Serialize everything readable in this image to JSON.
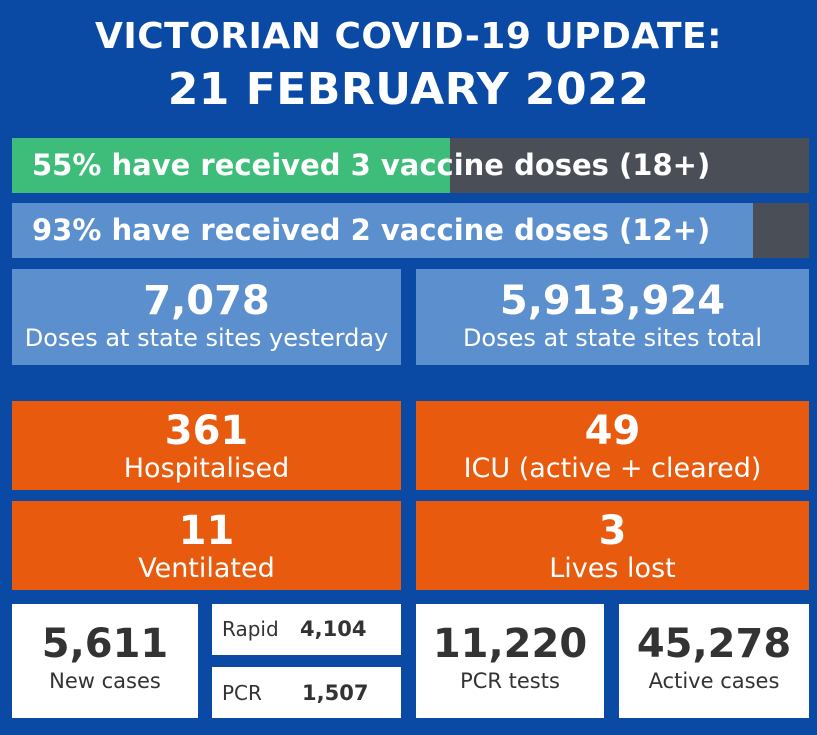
{
  "header": {
    "title_line1": "VICTORIAN COVID-19 UPDATE:",
    "title_line2": "21 FEBRUARY 2022"
  },
  "vaccination": {
    "three_dose": {
      "text": "55% have received 3 vaccine doses (18+)",
      "percent": 55,
      "color": "#3dbd79"
    },
    "two_dose": {
      "text": "93% have received 2 vaccine doses (12+)",
      "percent": 93,
      "color": "#5b8fcd"
    },
    "track_color": "#4a4f57"
  },
  "doses": {
    "yesterday": {
      "value": "7,078",
      "label": "Doses at state sites yesterday"
    },
    "total": {
      "value": "5,913,924",
      "label": "Doses at state sites total"
    }
  },
  "hospital": {
    "hospitalised": {
      "value": "361",
      "label": "Hospitalised"
    },
    "icu": {
      "value": "49",
      "label": "ICU (active + cleared)"
    },
    "ventilated": {
      "value": "11",
      "label": "Ventilated"
    },
    "lives_lost": {
      "value": "3",
      "label": "Lives lost"
    }
  },
  "cases": {
    "new_cases": {
      "value": "5,611",
      "label": "New cases"
    },
    "rapid": {
      "label": "Rapid",
      "value": "4,104"
    },
    "pcr": {
      "label": "PCR",
      "value": "1,507"
    },
    "pcr_tests": {
      "value": "11,220",
      "label": "PCR tests"
    },
    "active_cases": {
      "value": "45,278",
      "label": "Active cases"
    }
  },
  "colors": {
    "background": "#0a4aa5",
    "blue_box": "#5b8fcd",
    "orange_box": "#e85a0d"
  }
}
